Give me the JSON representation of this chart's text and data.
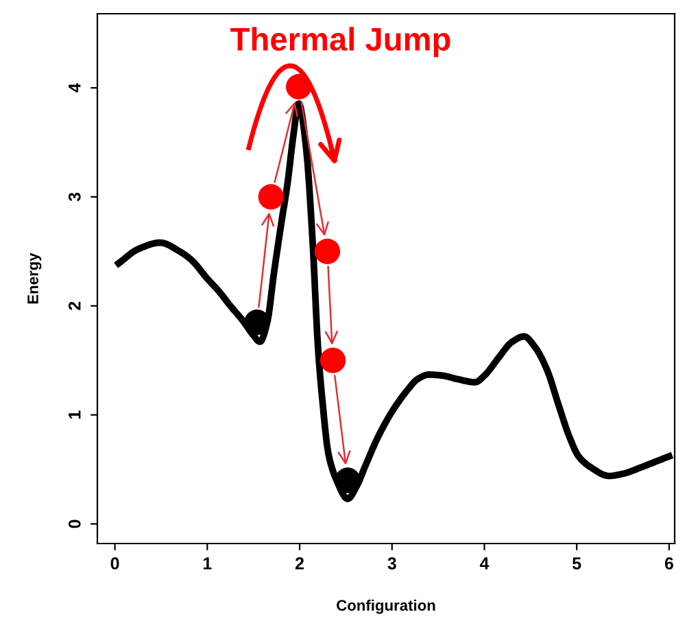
{
  "chart_data": {
    "type": "line",
    "xlabel": "Configuration",
    "ylabel": "Energy",
    "annotations": [
      "Thermal Jump"
    ],
    "xlim": [
      -0.19,
      6.06
    ],
    "ylim": [
      -0.18,
      4.68
    ],
    "xticks": [
      0,
      1,
      2,
      3,
      4,
      5,
      6
    ],
    "yticks": [
      0,
      1,
      2,
      3,
      4
    ],
    "grid": false,
    "legend": false,
    "series": [
      {
        "type": "line",
        "color": "#000000",
        "x": [
          0.04,
          0.25,
          0.49,
          0.7,
          0.83,
          1.0,
          1.13,
          1.25,
          1.38,
          1.5,
          1.57,
          1.65,
          1.72,
          1.8,
          1.87,
          1.93,
          1.99,
          2.07,
          2.14,
          2.2,
          2.25,
          2.31,
          2.4,
          2.52,
          2.62,
          2.71,
          2.85,
          3.0,
          3.16,
          3.28,
          3.4,
          3.55,
          3.7,
          3.9,
          4.0,
          4.15,
          4.3,
          4.43,
          4.55,
          4.68,
          4.8,
          4.92,
          5.02,
          5.15,
          5.35,
          5.5,
          5.7,
          5.85,
          6.0
        ],
        "values": [
          2.39,
          2.52,
          2.58,
          2.5,
          2.42,
          2.25,
          2.13,
          2.0,
          1.87,
          1.73,
          1.67,
          1.85,
          2.29,
          2.75,
          3.13,
          3.55,
          3.86,
          3.45,
          2.6,
          1.6,
          1.1,
          0.65,
          0.4,
          0.23,
          0.35,
          0.53,
          0.8,
          1.03,
          1.22,
          1.33,
          1.37,
          1.36,
          1.33,
          1.3,
          1.36,
          1.52,
          1.67,
          1.72,
          1.62,
          1.41,
          1.1,
          0.8,
          0.62,
          0.52,
          0.44,
          0.46,
          0.52,
          0.57,
          0.62
        ]
      },
      {
        "type": "scatter",
        "marker": "circle",
        "colors": [
          "#000000",
          "#ff0000",
          "#ff0000",
          "#ff0000",
          "#ff0000",
          "#000000"
        ],
        "x": [
          1.54,
          1.69,
          1.99,
          2.3,
          2.36,
          2.52
        ],
        "values": [
          1.85,
          3.0,
          4.01,
          2.5,
          1.5,
          0.4
        ]
      }
    ]
  }
}
